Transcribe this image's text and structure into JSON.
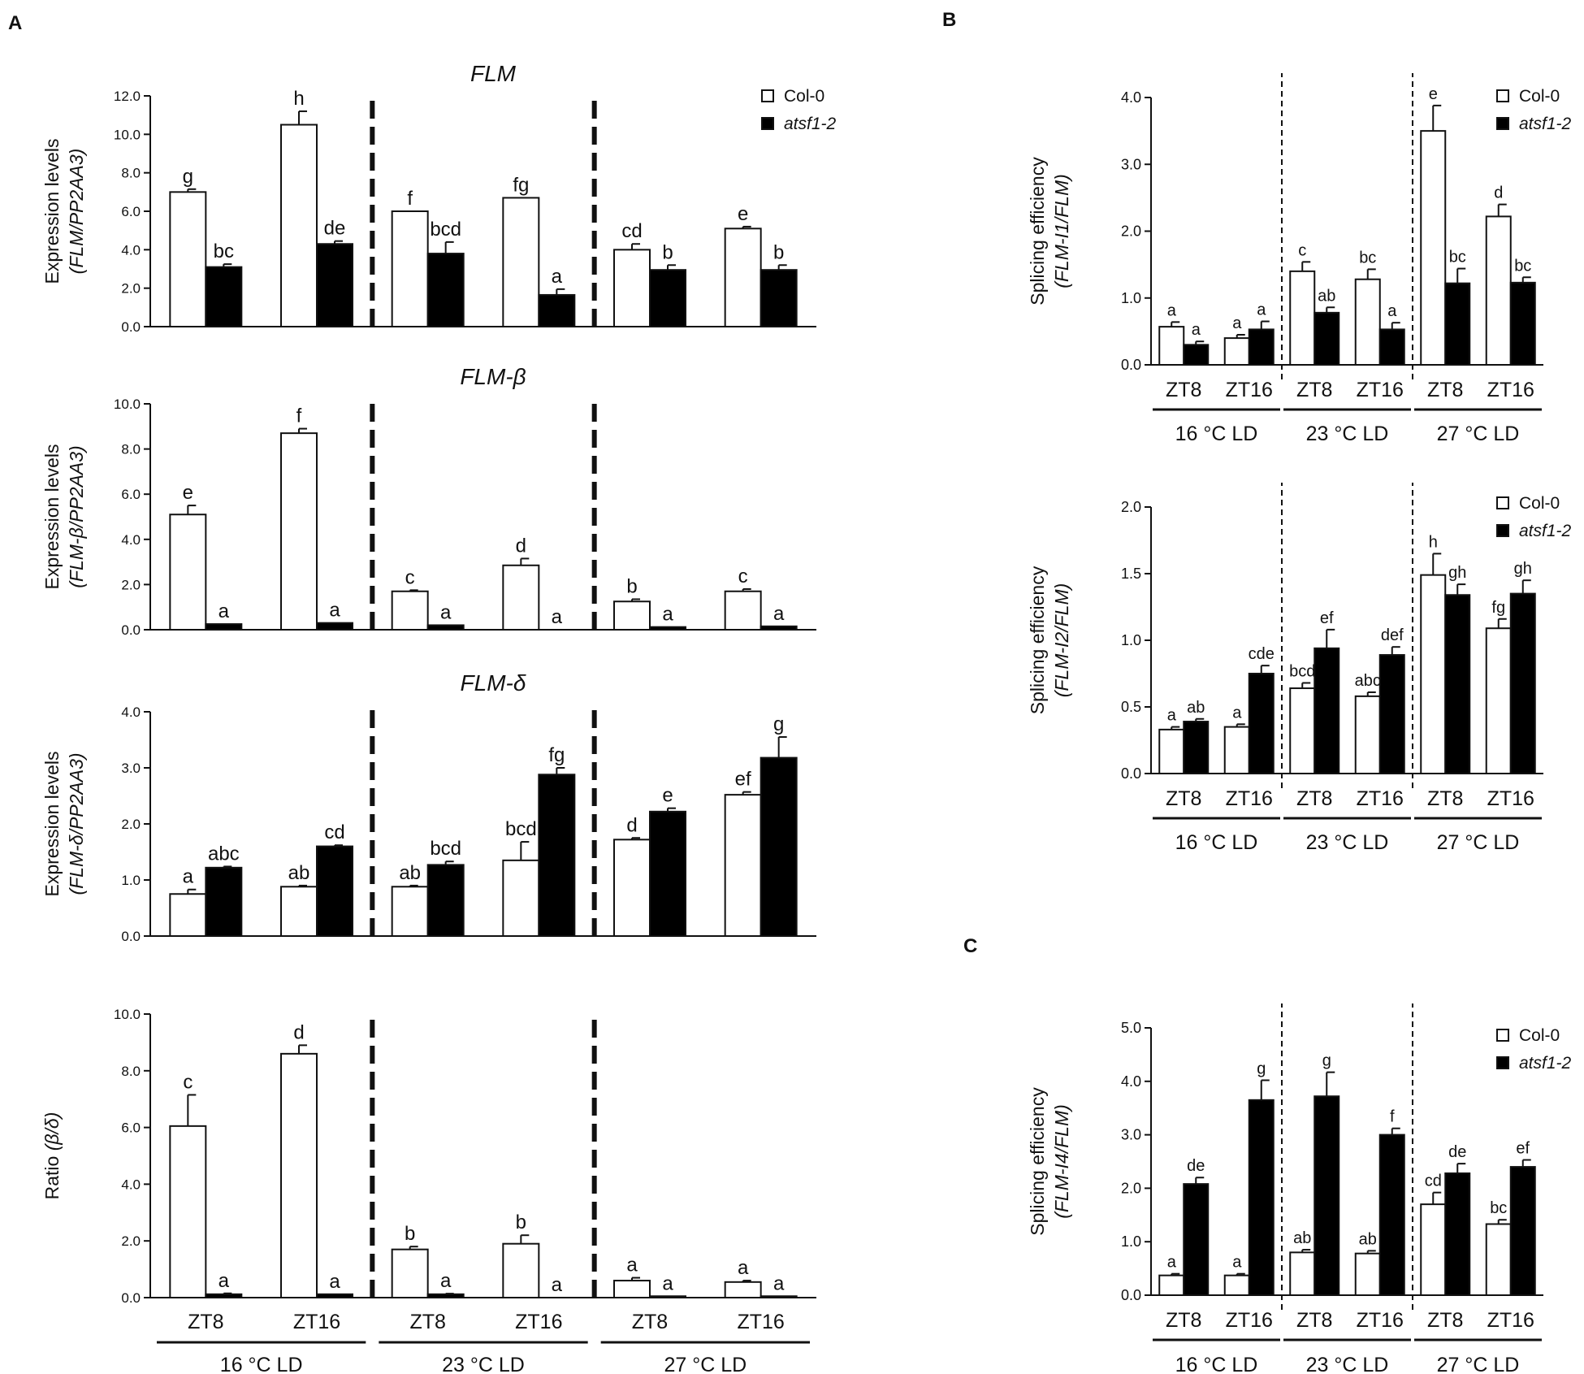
{
  "panel_labels": [
    "A",
    "B",
    "C"
  ],
  "legend": {
    "col0": "Col-0",
    "mutant": "atsf1-2"
  },
  "x_axis": {
    "timepoints": [
      "ZT8",
      "ZT16"
    ],
    "conditions": [
      "16 °C LD",
      "23 °C LD",
      "27 °C LD"
    ]
  },
  "chart_data": [
    {
      "id": "A1",
      "panel": "A",
      "type": "bar",
      "title": "FLM",
      "ylabel_main": "Expression levels",
      "ylabel_sub": "(FLM/PP2AA3)",
      "ylim": [
        0,
        12
      ],
      "yticks": [
        "0.0",
        "2.0",
        "4.0",
        "6.0",
        "8.0",
        "10.0",
        "12.0"
      ],
      "legend": true,
      "xlabels": false,
      "categories": [
        "16 °C ZT8",
        "16 °C ZT16",
        "23 °C ZT8",
        "23 °C ZT16",
        "27 °C ZT8",
        "27 °C ZT16"
      ],
      "series": [
        {
          "name": "Col-0",
          "values": [
            7.0,
            10.5,
            6.0,
            6.7,
            4.0,
            5.1
          ],
          "errors": [
            0.15,
            0.7,
            0.0,
            0.0,
            0.3,
            0.1
          ],
          "labels": [
            "g",
            "h",
            "f",
            "fg",
            "cd",
            "e"
          ]
        },
        {
          "name": "atsf1-2",
          "values": [
            3.1,
            4.3,
            3.8,
            1.65,
            2.95,
            2.95
          ],
          "errors": [
            0.15,
            0.15,
            0.6,
            0.3,
            0.25,
            0.25
          ],
          "labels": [
            "bc",
            "de",
            "bcd",
            "a",
            "b",
            "b"
          ]
        }
      ]
    },
    {
      "id": "A2",
      "panel": "A",
      "type": "bar",
      "title": "FLM-β",
      "ylabel_main": "Expression levels",
      "ylabel_sub": "(FLM-β/PP2AA3)",
      "ylim": [
        0,
        10
      ],
      "yticks": [
        "0.0",
        "2.0",
        "4.0",
        "6.0",
        "8.0",
        "10.0"
      ],
      "legend": false,
      "xlabels": false,
      "categories": [
        "16 °C ZT8",
        "16 °C ZT16",
        "23 °C ZT8",
        "23 °C ZT16",
        "27 °C ZT8",
        "27 °C ZT16"
      ],
      "series": [
        {
          "name": "Col-0",
          "values": [
            5.1,
            8.7,
            1.7,
            2.85,
            1.25,
            1.7
          ],
          "errors": [
            0.4,
            0.2,
            0.05,
            0.3,
            0.1,
            0.1
          ],
          "labels": [
            "e",
            "f",
            "c",
            "d",
            "b",
            "c"
          ]
        },
        {
          "name": "atsf1-2",
          "values": [
            0.25,
            0.3,
            0.2,
            0.0,
            0.12,
            0.15
          ],
          "errors": [
            0,
            0,
            0,
            0,
            0,
            0
          ],
          "labels": [
            "a",
            "a",
            "a",
            "a",
            "a",
            "a"
          ]
        }
      ]
    },
    {
      "id": "A3",
      "panel": "A",
      "type": "bar",
      "title": "FLM-δ",
      "ylabel_main": "Expression levels",
      "ylabel_sub": "(FLM-δ/PP2AA3)",
      "ylim": [
        0,
        4
      ],
      "yticks": [
        "0.0",
        "1.0",
        "2.0",
        "3.0",
        "4.0"
      ],
      "legend": false,
      "xlabels": false,
      "categories": [
        "16 °C ZT8",
        "16 °C ZT16",
        "23 °C ZT8",
        "23 °C ZT16",
        "27 °C ZT8",
        "27 °C ZT16"
      ],
      "series": [
        {
          "name": "Col-0",
          "values": [
            0.75,
            0.88,
            0.88,
            1.35,
            1.72,
            2.52
          ],
          "errors": [
            0.08,
            0.02,
            0.02,
            0.33,
            0.03,
            0.05
          ],
          "labels": [
            "a",
            "ab",
            "ab",
            "bcd",
            "d",
            "ef"
          ]
        },
        {
          "name": "atsf1-2",
          "values": [
            1.22,
            1.6,
            1.27,
            2.88,
            2.22,
            3.18
          ],
          "errors": [
            0.02,
            0.02,
            0.06,
            0.12,
            0.06,
            0.37
          ],
          "labels": [
            "abc",
            "cd",
            "bcd",
            "fg",
            "e",
            "g"
          ]
        }
      ]
    },
    {
      "id": "A4",
      "panel": "A",
      "type": "bar",
      "title": "",
      "ylabel_main": "Ratio",
      "ylabel_sub": "(β/δ)",
      "ylim": [
        0,
        10
      ],
      "yticks": [
        "0.0",
        "2.0",
        "4.0",
        "6.0",
        "8.0",
        "10.0"
      ],
      "legend": false,
      "xlabels": true,
      "categories": [
        "16 °C ZT8",
        "16 °C ZT16",
        "23 °C ZT8",
        "23 °C ZT16",
        "27 °C ZT8",
        "27 °C ZT16"
      ],
      "series": [
        {
          "name": "Col-0",
          "values": [
            6.05,
            8.6,
            1.7,
            1.9,
            0.6,
            0.55
          ],
          "errors": [
            1.1,
            0.3,
            0.1,
            0.3,
            0.1,
            0.05
          ],
          "labels": [
            "c",
            "d",
            "b",
            "b",
            "a",
            "a"
          ]
        },
        {
          "name": "atsf1-2",
          "values": [
            0.12,
            0.12,
            0.12,
            0.0,
            0.05,
            0.05
          ],
          "errors": [
            0.03,
            0,
            0.02,
            0,
            0,
            0
          ],
          "labels": [
            "a",
            "a",
            "a",
            "a",
            "a",
            "a"
          ]
        }
      ]
    },
    {
      "id": "B1",
      "panel": "B",
      "type": "bar",
      "title": "",
      "ylabel_main": "Splicing efficiency",
      "ylabel_sub": "(FLM-I1/FLM)",
      "ylim": [
        0,
        4
      ],
      "yticks": [
        "0.0",
        "1.0",
        "2.0",
        "3.0",
        "4.0"
      ],
      "legend": true,
      "xlabels": true,
      "categories": [
        "16 °C ZT8",
        "16 °C ZT16",
        "23 °C ZT8",
        "23 °C ZT16",
        "27 °C ZT8",
        "27 °C ZT16"
      ],
      "series": [
        {
          "name": "Col-0",
          "values": [
            0.57,
            0.4,
            1.4,
            1.28,
            3.5,
            2.22
          ],
          "errors": [
            0.07,
            0.05,
            0.14,
            0.15,
            0.38,
            0.18
          ],
          "labels": [
            "a",
            "a",
            "c",
            "bc",
            "e",
            "d"
          ]
        },
        {
          "name": "atsf1-2",
          "values": [
            0.3,
            0.53,
            0.78,
            0.53,
            1.22,
            1.23
          ],
          "errors": [
            0.05,
            0.12,
            0.08,
            0.1,
            0.22,
            0.08
          ],
          "labels": [
            "a",
            "a",
            "ab",
            "a",
            "bc",
            "bc"
          ]
        }
      ]
    },
    {
      "id": "B2",
      "panel": "B",
      "type": "bar",
      "title": "",
      "ylabel_main": "Splicing efficiency",
      "ylabel_sub": "(FLM-I2/FLM)",
      "ylim": [
        0,
        2
      ],
      "yticks": [
        "0.0",
        "0.5",
        "1.0",
        "1.5",
        "2.0"
      ],
      "legend": true,
      "xlabels": true,
      "categories": [
        "16 °C ZT8",
        "16 °C ZT16",
        "23 °C ZT8",
        "23 °C ZT16",
        "27 °C ZT8",
        "27 °C ZT16"
      ],
      "series": [
        {
          "name": "Col-0",
          "values": [
            0.33,
            0.35,
            0.64,
            0.58,
            1.49,
            1.09
          ],
          "errors": [
            0.02,
            0.02,
            0.04,
            0.03,
            0.16,
            0.07
          ],
          "labels": [
            "a",
            "a",
            "bcd",
            "abc",
            "h",
            "fg"
          ]
        },
        {
          "name": "atsf1-2",
          "values": [
            0.39,
            0.75,
            0.94,
            0.89,
            1.34,
            1.35
          ],
          "errors": [
            0.02,
            0.06,
            0.14,
            0.06,
            0.08,
            0.1
          ],
          "labels": [
            "ab",
            "cde",
            "ef",
            "def",
            "gh",
            "gh"
          ]
        }
      ]
    },
    {
      "id": "C1",
      "panel": "C",
      "type": "bar",
      "title": "",
      "ylabel_main": "Splicing efficiency",
      "ylabel_sub": "(FLM-I4/FLM)",
      "ylim": [
        0,
        5
      ],
      "yticks": [
        "0.0",
        "1.0",
        "2.0",
        "3.0",
        "4.0",
        "5.0"
      ],
      "legend": true,
      "xlabels": true,
      "categories": [
        "16 °C ZT8",
        "16 °C ZT16",
        "23 °C ZT8",
        "23 °C ZT16",
        "27 °C ZT8",
        "27 °C ZT16"
      ],
      "series": [
        {
          "name": "Col-0",
          "values": [
            0.37,
            0.37,
            0.8,
            0.78,
            1.7,
            1.33
          ],
          "errors": [
            0.03,
            0.03,
            0.05,
            0.05,
            0.22,
            0.08
          ],
          "labels": [
            "a",
            "a",
            "ab",
            "ab",
            "cd",
            "bc"
          ]
        },
        {
          "name": "atsf1-2",
          "values": [
            2.08,
            3.65,
            3.72,
            3.0,
            2.28,
            2.4
          ],
          "errors": [
            0.12,
            0.37,
            0.45,
            0.12,
            0.18,
            0.13
          ],
          "labels": [
            "de",
            "g",
            "g",
            "f",
            "de",
            "ef"
          ]
        }
      ]
    }
  ]
}
